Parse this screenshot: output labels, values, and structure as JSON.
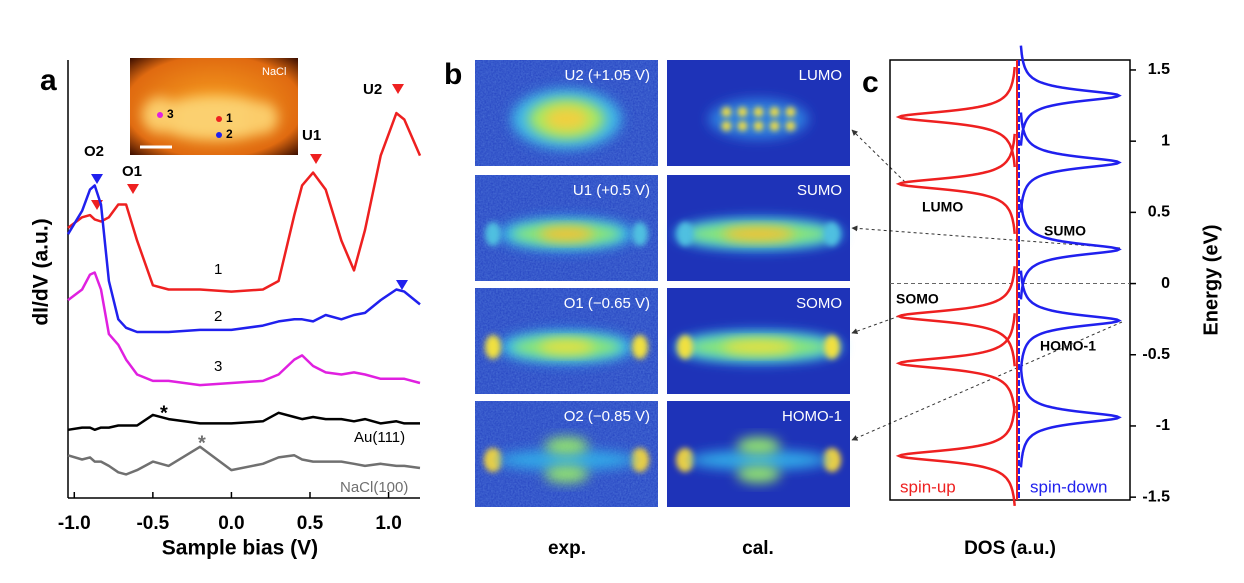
{
  "chart_data": [
    {
      "type": "line",
      "panel_label": "a",
      "xlabel": "Sample bias (V)",
      "ylabel": "dI/dV (a.u.)",
      "x": [
        -1.04,
        -0.95,
        -0.9,
        -0.87,
        -0.83,
        -0.78,
        -0.72,
        -0.67,
        -0.6,
        -0.5,
        -0.4,
        -0.2,
        0,
        0.2,
        0.3,
        0.4,
        0.45,
        0.52,
        0.6,
        0.7,
        0.78,
        0.85,
        0.95,
        1.05,
        1.1,
        1.2
      ],
      "xlim": [
        -1.04,
        1.2
      ],
      "ylim": [
        0,
        10
      ],
      "xticks": [
        {
          "value": -1,
          "label": "-1.0"
        },
        -0.5,
        {
          "value": 0,
          "label": "0.0"
        },
        0.5,
        {
          "value": 1,
          "label": "1.0"
        }
      ],
      "series": [
        {
          "name": "1",
          "color": "#ee2020",
          "values": [
            6.05,
            6.3,
            6.35,
            6.25,
            6.2,
            6.3,
            6.6,
            6.6,
            5.75,
            4.7,
            4.6,
            4.6,
            4.55,
            4.6,
            4.8,
            6.35,
            7.05,
            7.35,
            6.95,
            5.75,
            5.05,
            6.0,
            7.75,
            8.75,
            8.6,
            7.75
          ]
        },
        {
          "name": "2",
          "color": "#2020ee",
          "values": [
            5.9,
            6.45,
            6.95,
            7.05,
            6.6,
            4.8,
            3.9,
            3.7,
            3.6,
            3.6,
            3.6,
            3.65,
            3.65,
            3.75,
            3.85,
            3.9,
            3.9,
            3.85,
            4.0,
            3.9,
            4.0,
            4.05,
            4.35,
            4.6,
            4.55,
            4.25
          ]
        },
        {
          "name": "3",
          "color": "#e020e0",
          "values": [
            4.35,
            4.6,
            4.95,
            5.0,
            4.6,
            3.55,
            3.3,
            2.95,
            2.6,
            2.45,
            2.45,
            2.35,
            2.4,
            2.45,
            2.6,
            2.95,
            3.05,
            2.8,
            2.65,
            2.6,
            2.65,
            2.6,
            2.5,
            2.5,
            2.5,
            2.4
          ]
        },
        {
          "name": "Au(111)",
          "color": "#000000",
          "values": [
            1.3,
            1.35,
            1.35,
            1.3,
            1.35,
            1.35,
            1.4,
            1.4,
            1.4,
            1.65,
            1.55,
            1.45,
            1.45,
            1.5,
            1.7,
            1.6,
            1.55,
            1.6,
            1.55,
            1.55,
            1.5,
            1.55,
            1.45,
            1.5,
            1.45,
            1.45
          ]
        },
        {
          "name": "NaCl(100)",
          "color": "#707070",
          "values": [
            0.7,
            0.6,
            0.65,
            0.55,
            0.55,
            0.45,
            0.3,
            0.25,
            0.35,
            0.55,
            0.45,
            0.9,
            0.35,
            0.5,
            0.65,
            0.7,
            0.6,
            0.55,
            0.55,
            0.55,
            0.5,
            0.45,
            0.5,
            0.45,
            0.45,
            0.4
          ]
        }
      ],
      "annotations": [
        "O2",
        "O1",
        "U1",
        "U2",
        "*",
        "*"
      ],
      "inset_labels": [
        "NaCl",
        "1",
        "2",
        "3"
      ]
    },
    {
      "type": "peaks",
      "panel_label": "c",
      "xlabel": "DOS (a.u.)",
      "ylabel": "Energy (eV)",
      "ylim": [
        -1.52,
        1.57
      ],
      "yticks": [
        1.5,
        1,
        0.5,
        0,
        -0.5,
        -1,
        -1.5
      ],
      "series": [
        {
          "name": "spin-up",
          "color": "#ee2020",
          "values": [
            1.17,
            0.7,
            -0.23,
            -0.56,
            -1.21
          ]
        },
        {
          "name": "spin-down",
          "color": "#2020ee",
          "values": [
            1.32,
            0.85,
            0.24,
            -0.26,
            -0.94
          ]
        }
      ],
      "annotations": [
        "LUMO",
        "SUMO",
        "SOMO",
        "HOMO-1"
      ]
    }
  ],
  "images": {
    "panel_label": "b",
    "columns": [
      "exp.",
      "cal."
    ],
    "rows": [
      [
        "U2 (+1.05 V)",
        "LUMO"
      ],
      [
        "U1 (+0.5 V)",
        "SUMO"
      ],
      [
        "O1 (−0.65 V)",
        "SOMO"
      ],
      [
        "O2 (−0.85 V)",
        "HOMO-1"
      ]
    ]
  }
}
